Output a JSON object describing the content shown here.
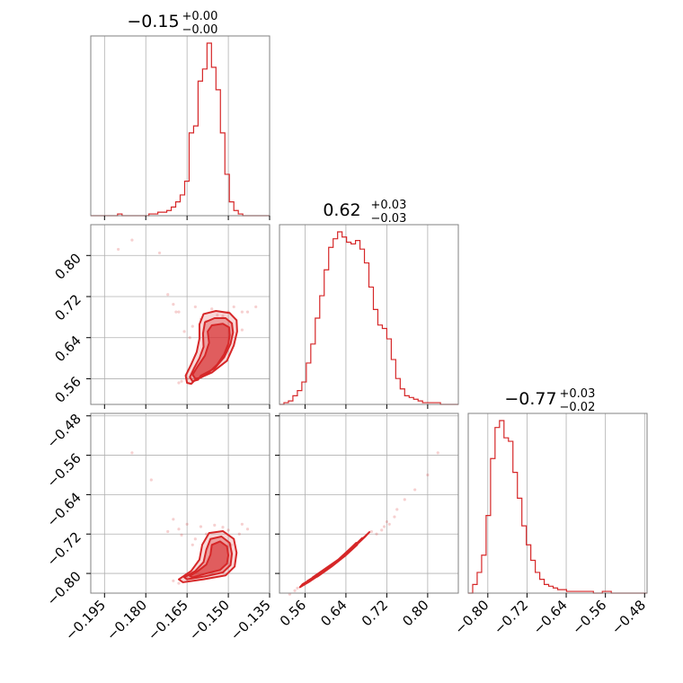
{
  "chart_data": {
    "type": "corner",
    "color": "#d62728",
    "grid": true,
    "parameters": [
      {
        "title": {
          "median": "−0.15",
          "plus": "+0.00",
          "minus": "−0.00"
        },
        "range": [
          -0.2,
          -0.135
        ],
        "ticks": [
          {
            "value": -0.195,
            "label": "−0.195"
          },
          {
            "value": -0.18,
            "label": "−0.180"
          },
          {
            "value": -0.165,
            "label": "−0.165"
          },
          {
            "value": -0.15,
            "label": "−0.150"
          },
          {
            "value": -0.135,
            "label": "−0.135"
          }
        ],
        "hist": [
          0.0,
          0.0,
          0.0,
          0.0,
          0.0,
          0.0,
          0.01,
          0.0,
          0.0,
          0.0,
          0.0,
          0.0,
          0.0,
          0.01,
          0.01,
          0.02,
          0.02,
          0.03,
          0.05,
          0.08,
          0.12,
          0.2,
          0.48,
          0.52,
          0.78,
          0.85,
          1.0,
          0.86,
          0.73,
          0.48,
          0.24,
          0.08,
          0.03,
          0.01,
          0.0,
          0.0,
          0.0,
          0.0,
          0.0,
          0.0
        ]
      },
      {
        "title": {
          "median": "0.62",
          "plus": "+0.03",
          "minus": "−0.03"
        },
        "range": [
          0.51,
          0.86
        ],
        "ticks": [
          {
            "value": 0.56,
            "label": "0.56"
          },
          {
            "value": 0.64,
            "label": "0.64"
          },
          {
            "value": 0.72,
            "label": "0.72"
          },
          {
            "value": 0.8,
            "label": "0.80"
          }
        ],
        "hist": [
          0.0,
          0.01,
          0.02,
          0.05,
          0.08,
          0.13,
          0.24,
          0.35,
          0.5,
          0.63,
          0.78,
          0.91,
          0.96,
          1.0,
          0.97,
          0.94,
          0.93,
          0.95,
          0.9,
          0.82,
          0.68,
          0.55,
          0.46,
          0.44,
          0.38,
          0.26,
          0.15,
          0.09,
          0.05,
          0.04,
          0.03,
          0.02,
          0.01,
          0.01,
          0.01,
          0.01,
          0.0,
          0.0,
          0.0,
          0.0
        ]
      },
      {
        "title": {
          "median": "−0.77",
          "plus": "+0.03",
          "minus": "−0.02"
        },
        "range": [
          -0.84,
          -0.475
        ],
        "ticks": [
          {
            "value": -0.8,
            "label": "−0.80"
          },
          {
            "value": -0.72,
            "label": "−0.72"
          },
          {
            "value": -0.64,
            "label": "−0.64"
          },
          {
            "value": -0.56,
            "label": "−0.56"
          },
          {
            "value": -0.48,
            "label": "−0.48"
          }
        ],
        "hist": [
          0.0,
          0.05,
          0.12,
          0.22,
          0.45,
          0.78,
          0.96,
          1.0,
          0.9,
          0.88,
          0.7,
          0.55,
          0.39,
          0.28,
          0.19,
          0.12,
          0.08,
          0.05,
          0.04,
          0.03,
          0.02,
          0.02,
          0.01,
          0.01,
          0.01,
          0.01,
          0.01,
          0.01,
          0.0,
          0.0,
          0.01,
          0.01,
          0.0,
          0.0,
          0.0,
          0.0,
          0.0,
          0.0,
          0.0,
          0.0
        ]
      }
    ],
    "pairs": [
      {
        "x_param": 0,
        "y_param": 1,
        "contours": [
          [
            [
              -0.1575,
              0.57
            ],
            [
              -0.154,
              0.588
            ],
            [
              -0.1515,
              0.608
            ],
            [
              -0.15,
              0.628
            ],
            [
              -0.1495,
              0.645
            ],
            [
              -0.1497,
              0.66
            ],
            [
              -0.152,
              0.667
            ],
            [
              -0.156,
              0.664
            ],
            [
              -0.1575,
              0.652
            ],
            [
              -0.157,
              0.63
            ],
            [
              -0.1585,
              0.605
            ],
            [
              -0.161,
              0.585
            ],
            [
              -0.163,
              0.568
            ],
            [
              -0.162,
              0.56
            ],
            [
              -0.16,
              0.562
            ]
          ],
          [
            [
              -0.16,
              0.566
            ],
            [
              -0.155,
              0.58
            ],
            [
              -0.1515,
              0.602
            ],
            [
              -0.1492,
              0.628
            ],
            [
              -0.1483,
              0.65
            ],
            [
              -0.1487,
              0.668
            ],
            [
              -0.151,
              0.678
            ],
            [
              -0.155,
              0.678
            ],
            [
              -0.1585,
              0.67
            ],
            [
              -0.1592,
              0.648
            ],
            [
              -0.159,
              0.622
            ],
            [
              -0.1605,
              0.6
            ],
            [
              -0.1625,
              0.58
            ],
            [
              -0.164,
              0.563
            ],
            [
              -0.163,
              0.555
            ],
            [
              -0.161,
              0.558
            ]
          ],
          [
            [
              -0.162,
              0.558
            ],
            [
              -0.156,
              0.572
            ],
            [
              -0.1505,
              0.595
            ],
            [
              -0.148,
              0.625
            ],
            [
              -0.1468,
              0.652
            ],
            [
              -0.147,
              0.674
            ],
            [
              -0.1495,
              0.688
            ],
            [
              -0.1545,
              0.692
            ],
            [
              -0.159,
              0.686
            ],
            [
              -0.1605,
              0.666
            ],
            [
              -0.1605,
              0.638
            ],
            [
              -0.1615,
              0.612
            ],
            [
              -0.1635,
              0.588
            ],
            [
              -0.1655,
              0.566
            ],
            [
              -0.165,
              0.552
            ],
            [
              -0.1635,
              0.55
            ]
          ]
        ],
        "points": [
          [
            -0.185,
            0.83
          ],
          [
            -0.17,
            0.705
          ],
          [
            -0.168,
            0.69
          ],
          [
            -0.145,
            0.69
          ],
          [
            -0.162,
            0.7
          ],
          [
            -0.158,
            0.672
          ],
          [
            -0.16,
            0.676
          ],
          [
            -0.163,
            0.662
          ],
          [
            -0.166,
            0.652
          ],
          [
            -0.145,
            0.655
          ],
          [
            -0.143,
            0.69
          ],
          [
            -0.175,
            0.805
          ],
          [
            -0.19,
            0.812
          ],
          [
            -0.172,
            0.724
          ],
          [
            -0.14,
            0.7
          ],
          [
            -0.152,
            0.682
          ],
          [
            -0.148,
            0.7
          ],
          [
            -0.165,
            0.56
          ],
          [
            -0.167,
            0.555
          ],
          [
            -0.168,
            0.552
          ],
          [
            -0.164,
            0.64
          ],
          [
            -0.15,
            0.69
          ],
          [
            -0.156,
            0.696
          ],
          [
            -0.169,
            0.69
          ],
          [
            -0.154,
            0.684
          ]
        ]
      },
      {
        "x_param": 0,
        "y_param": 2,
        "contours": [
          [
            [
              -0.163,
              -0.808
            ],
            [
              -0.158,
              -0.8
            ],
            [
              -0.153,
              -0.793
            ],
            [
              -0.1505,
              -0.78
            ],
            [
              -0.15,
              -0.763
            ],
            [
              -0.1505,
              -0.745
            ],
            [
              -0.153,
              -0.735
            ],
            [
              -0.156,
              -0.742
            ],
            [
              -0.1565,
              -0.762
            ],
            [
              -0.158,
              -0.782
            ],
            [
              -0.161,
              -0.795
            ],
            [
              -0.164,
              -0.805
            ]
          ],
          [
            [
              -0.165,
              -0.812
            ],
            [
              -0.1585,
              -0.806
            ],
            [
              -0.152,
              -0.798
            ],
            [
              -0.1492,
              -0.783
            ],
            [
              -0.1487,
              -0.76
            ],
            [
              -0.1495,
              -0.738
            ],
            [
              -0.1525,
              -0.725
            ],
            [
              -0.1565,
              -0.73
            ],
            [
              -0.158,
              -0.752
            ],
            [
              -0.159,
              -0.777
            ],
            [
              -0.162,
              -0.795
            ],
            [
              -0.166,
              -0.808
            ]
          ],
          [
            [
              -0.1665,
              -0.818
            ],
            [
              -0.159,
              -0.812
            ],
            [
              -0.151,
              -0.804
            ],
            [
              -0.1477,
              -0.786
            ],
            [
              -0.147,
              -0.758
            ],
            [
              -0.148,
              -0.73
            ],
            [
              -0.152,
              -0.714
            ],
            [
              -0.157,
              -0.718
            ],
            [
              -0.1595,
              -0.742
            ],
            [
              -0.1605,
              -0.772
            ],
            [
              -0.1635,
              -0.795
            ],
            [
              -0.168,
              -0.812
            ]
          ]
        ],
        "points": [
          [
            -0.185,
            -0.555
          ],
          [
            -0.178,
            -0.61
          ],
          [
            -0.17,
            -0.69
          ],
          [
            -0.165,
            -0.7
          ],
          [
            -0.16,
            -0.705
          ],
          [
            -0.168,
            -0.71
          ],
          [
            -0.145,
            -0.7
          ],
          [
            -0.143,
            -0.71
          ],
          [
            -0.158,
            -0.72
          ],
          [
            -0.162,
            -0.73
          ],
          [
            -0.172,
            -0.715
          ],
          [
            -0.15,
            -0.712
          ],
          [
            -0.155,
            -0.702
          ],
          [
            -0.167,
            -0.722
          ],
          [
            -0.163,
            -0.742
          ],
          [
            -0.17,
            -0.815
          ],
          [
            -0.168,
            -0.82
          ],
          [
            -0.146,
            -0.72
          ],
          [
            -0.152,
            -0.706
          ],
          [
            -0.149,
            -0.742
          ]
        ]
      },
      {
        "x_param": 1,
        "y_param": 2,
        "contours": [
          [
            [
              0.575,
              -0.808
            ],
            [
              0.6,
              -0.79
            ],
            [
              0.625,
              -0.772
            ],
            [
              0.65,
              -0.748
            ],
            [
              0.66,
              -0.738
            ],
            [
              0.662,
              -0.742
            ],
            [
              0.64,
              -0.763
            ],
            [
              0.612,
              -0.786
            ],
            [
              0.585,
              -0.806
            ],
            [
              0.572,
              -0.812
            ]
          ],
          [
            [
              0.565,
              -0.815
            ],
            [
              0.598,
              -0.794
            ],
            [
              0.63,
              -0.77
            ],
            [
              0.658,
              -0.742
            ],
            [
              0.672,
              -0.728
            ],
            [
              0.666,
              -0.735
            ],
            [
              0.638,
              -0.764
            ],
            [
              0.605,
              -0.79
            ],
            [
              0.578,
              -0.81
            ],
            [
              0.562,
              -0.82
            ]
          ],
          [
            [
              0.555,
              -0.822
            ],
            [
              0.595,
              -0.797
            ],
            [
              0.632,
              -0.768
            ],
            [
              0.666,
              -0.736
            ],
            [
              0.686,
              -0.716
            ],
            [
              0.678,
              -0.725
            ],
            [
              0.64,
              -0.762
            ],
            [
              0.6,
              -0.794
            ],
            [
              0.568,
              -0.817
            ],
            [
              0.55,
              -0.828
            ]
          ]
        ],
        "points": [
          [
            0.7,
            -0.72
          ],
          [
            0.715,
            -0.705
          ],
          [
            0.72,
            -0.695
          ],
          [
            0.74,
            -0.67
          ],
          [
            0.755,
            -0.65
          ],
          [
            0.775,
            -0.63
          ],
          [
            0.8,
            -0.6
          ],
          [
            0.82,
            -0.555
          ],
          [
            0.53,
            -0.842
          ],
          [
            0.54,
            -0.835
          ],
          [
            0.545,
            -0.83
          ],
          [
            0.69,
            -0.715
          ],
          [
            0.71,
            -0.712
          ],
          [
            0.725,
            -0.7
          ],
          [
            0.735,
            -0.685
          ]
        ]
      }
    ]
  }
}
